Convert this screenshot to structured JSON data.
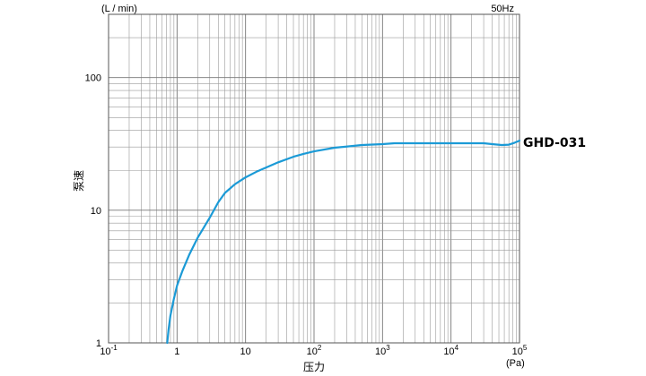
{
  "chart_data": {
    "type": "line",
    "title": "",
    "corner_note": "50Hz",
    "xlabel": "压力",
    "x_unit": "(Pa)",
    "ylabel": "泵速",
    "y_unit": "(L / min)",
    "x_scale": "log",
    "y_scale": "log",
    "xlim": [
      0.1,
      100000
    ],
    "ylim": [
      1,
      300
    ],
    "grid": true,
    "x_ticks": [
      {
        "value": 0.1,
        "base": "10",
        "exp": "-1"
      },
      {
        "value": 1,
        "base": "1",
        "exp": ""
      },
      {
        "value": 10,
        "base": "10",
        "exp": ""
      },
      {
        "value": 100,
        "base": "10",
        "exp": "2"
      },
      {
        "value": 1000,
        "base": "10",
        "exp": "3"
      },
      {
        "value": 10000,
        "base": "10",
        "exp": "4"
      },
      {
        "value": 100000,
        "base": "10",
        "exp": "5"
      }
    ],
    "y_ticks": [
      {
        "value": 1,
        "label": "1"
      },
      {
        "value": 10,
        "label": "10"
      },
      {
        "value": 100,
        "label": "100"
      }
    ],
    "series": [
      {
        "name": "GHD-031",
        "color": "#1b9ad6",
        "x": [
          0.72,
          0.75,
          0.8,
          0.9,
          1.0,
          1.2,
          1.5,
          2,
          3,
          4,
          5,
          7,
          10,
          15,
          20,
          30,
          50,
          70,
          100,
          200,
          500,
          1000,
          1500,
          3000,
          10000,
          20000,
          30000,
          40000,
          55000,
          70000,
          85000,
          100000
        ],
        "y": [
          1.0,
          1.25,
          1.6,
          2.15,
          2.7,
          3.5,
          4.6,
          6.2,
          8.8,
          11.5,
          13.5,
          15.7,
          17.7,
          19.7,
          21.0,
          23.0,
          25.3,
          26.6,
          27.8,
          29.6,
          31.0,
          31.5,
          32.0,
          32.0,
          32.0,
          32.0,
          32.0,
          31.5,
          31.0,
          31.2,
          32.3,
          33.5
        ]
      }
    ]
  }
}
